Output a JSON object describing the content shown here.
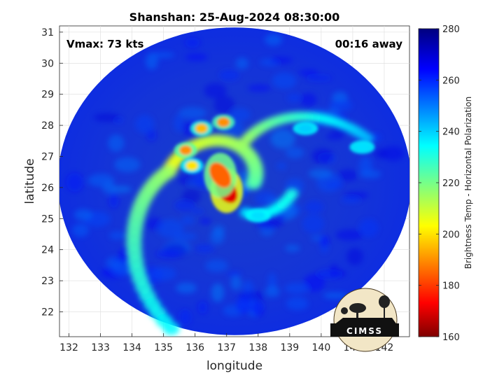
{
  "chart_data": {
    "type": "heatmap",
    "title": "Shanshan: 25-Aug-2024 08:30:00",
    "xlabel": "longitude",
    "ylabel": "latitude",
    "xlim": [
      131.7,
      142.8
    ],
    "ylim": [
      21.2,
      31.2
    ],
    "x_ticks": [
      132,
      133,
      134,
      135,
      136,
      137,
      138,
      139,
      140,
      141,
      142
    ],
    "y_ticks": [
      22,
      23,
      24,
      25,
      26,
      27,
      28,
      29,
      30,
      31
    ],
    "grid": true,
    "annotations": {
      "vmax": "Vmax: 73 kts",
      "time_offset": "00:16 away"
    },
    "colorbar": {
      "label": "Brightness Temp - Horizontal Polarization",
      "range": [
        160,
        280
      ],
      "ticks": [
        160,
        180,
        200,
        220,
        240,
        260,
        280
      ],
      "colormap": "jet"
    },
    "storm_center": {
      "lon": 137.2,
      "lat": 26.0
    },
    "swath": {
      "center_lon": 137.25,
      "center_lat": 26.2,
      "half_width_deg": 5.6,
      "half_height_deg": 4.95
    },
    "features": [
      {
        "kind": "eyewall_core",
        "lon": 137.0,
        "lat": 25.9,
        "value": 170
      },
      {
        "kind": "eyewall_core",
        "lon": 136.8,
        "lat": 26.4,
        "value": 185
      },
      {
        "kind": "rainband",
        "lon": 135.7,
        "lat": 27.2,
        "value": 190
      },
      {
        "kind": "rainband",
        "lon": 136.2,
        "lat": 27.9,
        "value": 195
      },
      {
        "kind": "rainband",
        "lon": 136.9,
        "lat": 28.1,
        "value": 190
      },
      {
        "kind": "rainband",
        "lon": 135.9,
        "lat": 26.7,
        "value": 200
      },
      {
        "kind": "outer_band",
        "lon": 139.5,
        "lat": 27.9,
        "value": 240
      },
      {
        "kind": "outer_band",
        "lon": 141.3,
        "lat": 27.3,
        "value": 238
      },
      {
        "kind": "outer_band",
        "lon": 138.0,
        "lat": 25.1,
        "value": 238
      }
    ]
  },
  "logo": {
    "name": "cimss-logo",
    "text": "CIMSS"
  }
}
